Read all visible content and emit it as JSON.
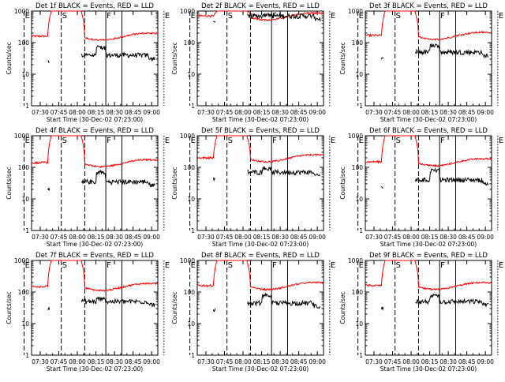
{
  "page": {
    "colors": {
      "background": "#ffffff",
      "events": "#000000",
      "lld": "#ff0000",
      "axis": "#000000"
    }
  },
  "shared": {
    "xlabel": "Start Time (30-Dec-02 07:23:00)",
    "ylabel": "Counts/sec",
    "x_ticks": [
      "07:30",
      "07:45",
      "08:00",
      "08:15",
      "08:30",
      "08:45",
      "09:00"
    ],
    "y_ticks": [
      "1",
      "10",
      "100",
      "1000"
    ],
    "markers": [
      {
        "label": "E",
        "t": -6,
        "style": "dashed"
      },
      {
        "label": "S",
        "t": 24,
        "style": "dashed"
      },
      {
        "label": "",
        "t": 43,
        "style": "dashed"
      },
      {
        "label": "F",
        "t": 60,
        "style": "solid"
      },
      {
        "label": "",
        "t": 73,
        "style": "solid"
      },
      {
        "label": "E",
        "t": 107,
        "style": "dotted"
      }
    ]
  },
  "chart_data": [
    {
      "type": "line",
      "title": "Det 1f BLACK = Events, RED = LLD",
      "xlabel": "Start Time (30-Dec-02 07:23:00)",
      "ylabel": "Counts/sec",
      "xlim": [
        "07:23",
        "09:05"
      ],
      "ylim": [
        1,
        1000
      ],
      "yscale": "log",
      "series": [
        {
          "name": "Events",
          "color": "#000000",
          "baseline": 40,
          "spike": 70
        },
        {
          "name": "LLD",
          "color": "#ff0000",
          "baseline": 160,
          "peak": 1000
        }
      ]
    },
    {
      "type": "line",
      "title": "Det 2f BLACK = Events, RED = LLD",
      "xlabel": "Start Time (30-Dec-02 07:23:00)",
      "ylabel": "Counts/sec",
      "xlim": [
        "07:23",
        "09:05"
      ],
      "ylim": [
        1,
        1000
      ],
      "yscale": "log",
      "series": [
        {
          "name": "Events",
          "color": "#000000",
          "baseline": 700,
          "spike": 750
        },
        {
          "name": "LLD",
          "color": "#ff0000",
          "baseline": 700,
          "peak": 1000
        }
      ]
    },
    {
      "type": "line",
      "title": "Det 3f BLACK = Events, RED = LLD",
      "xlabel": "Start Time (30-Dec-02 07:23:00)",
      "ylabel": "Counts/sec",
      "xlim": [
        "07:23",
        "09:05"
      ],
      "ylim": [
        1,
        1000
      ],
      "yscale": "log",
      "series": [
        {
          "name": "Events",
          "color": "#000000",
          "baseline": 50,
          "spike": 80
        },
        {
          "name": "LLD",
          "color": "#ff0000",
          "baseline": 170,
          "peak": 1000
        }
      ]
    },
    {
      "type": "line",
      "title": "Det 4f BLACK = Events, RED = LLD",
      "xlabel": "Start Time (30-Dec-02 07:23:00)",
      "ylabel": "Counts/sec",
      "xlim": [
        "07:23",
        "09:05"
      ],
      "ylim": [
        1,
        1000
      ],
      "yscale": "log",
      "series": [
        {
          "name": "Events",
          "color": "#000000",
          "baseline": 35,
          "spike": 70
        },
        {
          "name": "LLD",
          "color": "#ff0000",
          "baseline": 140,
          "peak": 1000
        }
      ]
    },
    {
      "type": "line",
      "title": "Det 5f BLACK = Events, RED = LLD",
      "xlabel": "Start Time (30-Dec-02 07:23:00)",
      "ylabel": "Counts/sec",
      "xlim": [
        "07:23",
        "09:05"
      ],
      "ylim": [
        1,
        1000
      ],
      "yscale": "log",
      "series": [
        {
          "name": "Events",
          "color": "#000000",
          "baseline": 70,
          "spike": 90
        },
        {
          "name": "LLD",
          "color": "#ff0000",
          "baseline": 200,
          "peak": 1000
        }
      ]
    },
    {
      "type": "line",
      "title": "Det 6f BLACK = Events, RED = LLD",
      "xlabel": "Start Time (30-Dec-02 07:23:00)",
      "ylabel": "Counts/sec",
      "xlim": [
        "07:23",
        "09:05"
      ],
      "ylim": [
        1,
        1000
      ],
      "yscale": "log",
      "series": [
        {
          "name": "Events",
          "color": "#000000",
          "baseline": 40,
          "spike": 80
        },
        {
          "name": "LLD",
          "color": "#ff0000",
          "baseline": 150,
          "peak": 1000
        }
      ]
    },
    {
      "type": "line",
      "title": "Det 7f BLACK = Events, RED = LLD",
      "xlabel": "Start Time (30-Dec-02 07:23:00)",
      "ylabel": "Counts/sec",
      "xlim": [
        "07:23",
        "09:05"
      ],
      "ylim": [
        1,
        1000
      ],
      "yscale": "log",
      "series": [
        {
          "name": "Events",
          "color": "#000000",
          "baseline": 50,
          "spike": 60
        },
        {
          "name": "LLD",
          "color": "#ff0000",
          "baseline": 150,
          "peak": 1000
        }
      ]
    },
    {
      "type": "line",
      "title": "Det 8f BLACK = Events, RED = LLD",
      "xlabel": "Start Time (30-Dec-02 07:23:00)",
      "ylabel": "Counts/sec",
      "xlim": [
        "07:23",
        "09:05"
      ],
      "ylim": [
        1,
        1000
      ],
      "yscale": "log",
      "series": [
        {
          "name": "Events",
          "color": "#000000",
          "baseline": 45,
          "spike": 80
        },
        {
          "name": "LLD",
          "color": "#ff0000",
          "baseline": 160,
          "peak": 1000
        }
      ]
    },
    {
      "type": "line",
      "title": "Det 9f BLACK = Events, RED = LLD",
      "xlabel": "Start Time (30-Dec-02 07:23:00)",
      "ylabel": "Counts/sec",
      "xlim": [
        "07:23",
        "09:05"
      ],
      "ylim": [
        1,
        1000
      ],
      "yscale": "log",
      "series": [
        {
          "name": "Events",
          "color": "#000000",
          "baseline": 50,
          "spike": 75
        },
        {
          "name": "LLD",
          "color": "#ff0000",
          "baseline": 160,
          "peak": 1000
        }
      ]
    }
  ]
}
